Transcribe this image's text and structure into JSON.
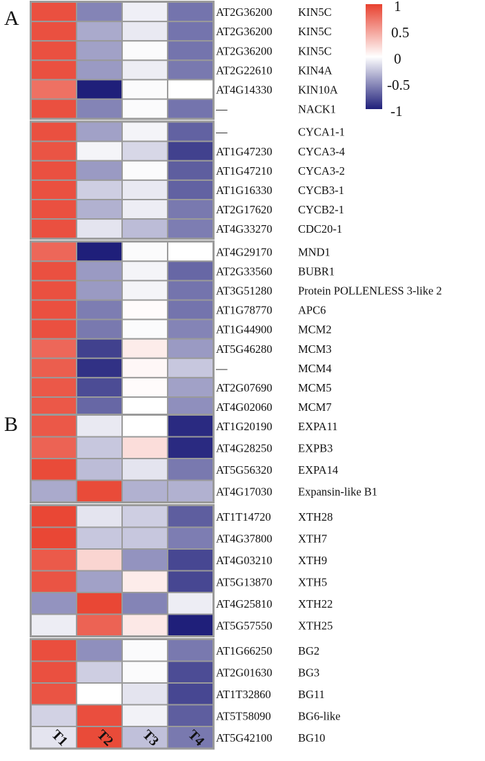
{
  "chart_data": [
    {
      "type": "heatmap",
      "panel_label": "A",
      "columns": [
        "T1",
        "T2",
        "T3",
        "T4"
      ],
      "rows": [
        {
          "id": "AT2G36200",
          "gene": "KIN5C",
          "values": [
            0.92,
            -0.55,
            -0.07,
            -0.62
          ],
          "group": 0
        },
        {
          "id": "AT2G36200",
          "gene": "KIN5C",
          "values": [
            0.92,
            -0.38,
            -0.1,
            -0.62
          ],
          "group": 0
        },
        {
          "id": "AT2G36200",
          "gene": "KIN5C",
          "values": [
            0.92,
            -0.42,
            -0.02,
            -0.62
          ],
          "group": 0
        },
        {
          "id": "AT2G22610",
          "gene": "KIN4A",
          "values": [
            0.92,
            -0.45,
            -0.08,
            -0.6
          ],
          "group": 0
        },
        {
          "id": "AT4G14330",
          "gene": "KIN10A",
          "values": [
            0.75,
            -1.0,
            -0.02,
            0.0
          ],
          "group": 0
        },
        {
          "id": "—",
          "gene": "NACK1",
          "values": [
            0.92,
            -0.55,
            -0.02,
            -0.62
          ],
          "group": 0
        },
        {
          "id": "—",
          "gene": "CYCA1-1",
          "values": [
            0.92,
            -0.42,
            -0.05,
            -0.7
          ],
          "group": 1
        },
        {
          "id": "AT1G47230",
          "gene": "CYCA3-4",
          "values": [
            0.9,
            -0.05,
            -0.18,
            -0.85
          ],
          "group": 1
        },
        {
          "id": "AT1G47210",
          "gene": "CYCA3-2",
          "values": [
            0.92,
            -0.45,
            -0.02,
            -0.72
          ],
          "group": 1
        },
        {
          "id": "AT1G16330",
          "gene": "CYCB3-1",
          "values": [
            0.92,
            -0.22,
            -0.1,
            -0.7
          ],
          "group": 1
        },
        {
          "id": "AT2G17620",
          "gene": "CYCB2-1",
          "values": [
            0.92,
            -0.35,
            -0.08,
            -0.6
          ],
          "group": 1
        },
        {
          "id": "AT4G33270",
          "gene": "CDC20-1",
          "values": [
            0.92,
            -0.12,
            -0.3,
            -0.58
          ],
          "group": 1
        },
        {
          "id": "AT4G29170",
          "gene": "MND1",
          "values": [
            0.8,
            -1.0,
            -0.02,
            0.0
          ],
          "group": 2
        },
        {
          "id": "AT2G33560",
          "gene": "BUBR1",
          "values": [
            0.92,
            -0.45,
            -0.05,
            -0.68
          ],
          "group": 2
        },
        {
          "id": "AT3G51280",
          "gene": "Protein POLLENLESS 3-like 2",
          "values": [
            0.92,
            -0.45,
            -0.05,
            -0.62
          ],
          "group": 2
        },
        {
          "id": "AT1G78770",
          "gene": "APC6",
          "values": [
            0.92,
            -0.58,
            0.02,
            -0.62
          ],
          "group": 2
        },
        {
          "id": "AT1G44900",
          "gene": "MCM2",
          "values": [
            0.92,
            -0.6,
            -0.02,
            -0.55
          ],
          "group": 2
        },
        {
          "id": "AT5G46280",
          "gene": "MCM3",
          "values": [
            0.8,
            -0.85,
            0.1,
            -0.45
          ],
          "group": 2
        },
        {
          "id": "—",
          "gene": "MCM4",
          "values": [
            0.85,
            -0.92,
            0.04,
            -0.25
          ],
          "group": 2
        },
        {
          "id": "AT2G07690",
          "gene": "MCM5",
          "values": [
            0.88,
            -0.8,
            0.02,
            -0.42
          ],
          "group": 2
        },
        {
          "id": "AT4G02060",
          "gene": "MCM7",
          "values": [
            0.88,
            -0.68,
            0.0,
            -0.5
          ],
          "group": 2
        }
      ],
      "colorbar": {
        "min": -1,
        "max": 1,
        "ticks": [
          1,
          0.5,
          0,
          -0.5,
          -1
        ],
        "low_color": "#1f1f7a",
        "mid_color": "#ffffff",
        "high_color": "#e8412f"
      }
    },
    {
      "type": "heatmap",
      "panel_label": "B",
      "columns": [
        "T1",
        "T2",
        "T3",
        "T4"
      ],
      "rows": [
        {
          "id": "AT1G20190",
          "gene": "EXPA11",
          "values": [
            0.88,
            -0.1,
            0.0,
            -0.95
          ],
          "group": 0
        },
        {
          "id": "AT4G28250",
          "gene": "EXPB3",
          "values": [
            0.82,
            -0.25,
            0.18,
            -0.95
          ],
          "group": 0
        },
        {
          "id": "AT5G56320",
          "gene": "EXPA14",
          "values": [
            0.95,
            -0.3,
            -0.12,
            -0.6
          ],
          "group": 0
        },
        {
          "id": "AT4G17030",
          "gene": "Expansin-like B1",
          "values": [
            -0.38,
            0.95,
            -0.35,
            -0.35
          ],
          "group": 0
        },
        {
          "id": "AT1T14720",
          "gene": "XTH28",
          "values": [
            0.97,
            -0.12,
            -0.22,
            -0.72
          ],
          "group": 1
        },
        {
          "id": "AT4G37800",
          "gene": "XTH7",
          "values": [
            0.97,
            -0.25,
            -0.25,
            -0.58
          ],
          "group": 1
        },
        {
          "id": "AT4G03210",
          "gene": "XTH9",
          "values": [
            0.87,
            0.22,
            -0.48,
            -0.82
          ],
          "group": 1
        },
        {
          "id": "AT5G13870",
          "gene": "XTH5",
          "values": [
            0.9,
            -0.42,
            0.1,
            -0.82
          ],
          "group": 1
        },
        {
          "id": "AT4G25810",
          "gene": "XTH22",
          "values": [
            -0.48,
            0.97,
            -0.55,
            -0.08
          ],
          "group": 1
        },
        {
          "id": "AT5G57550",
          "gene": "XTH25",
          "values": [
            -0.08,
            0.82,
            0.12,
            -1.0
          ],
          "group": 1
        },
        {
          "id": "AT1G66250",
          "gene": "BG2",
          "values": [
            0.93,
            -0.5,
            -0.02,
            -0.6
          ],
          "group": 2
        },
        {
          "id": "AT2G01630",
          "gene": "BG3",
          "values": [
            0.92,
            -0.22,
            -0.02,
            -0.8
          ],
          "group": 2
        },
        {
          "id": "AT1T32860",
          "gene": "BG11",
          "values": [
            0.9,
            0.0,
            -0.12,
            -0.82
          ],
          "group": 2
        },
        {
          "id": "AT5T58090",
          "gene": "BG6-like",
          "values": [
            -0.2,
            0.93,
            -0.06,
            -0.72
          ],
          "group": 2
        },
        {
          "id": "AT5G42100",
          "gene": "BG10",
          "values": [
            -0.12,
            0.95,
            -0.28,
            -0.6
          ],
          "group": 2
        }
      ]
    }
  ]
}
